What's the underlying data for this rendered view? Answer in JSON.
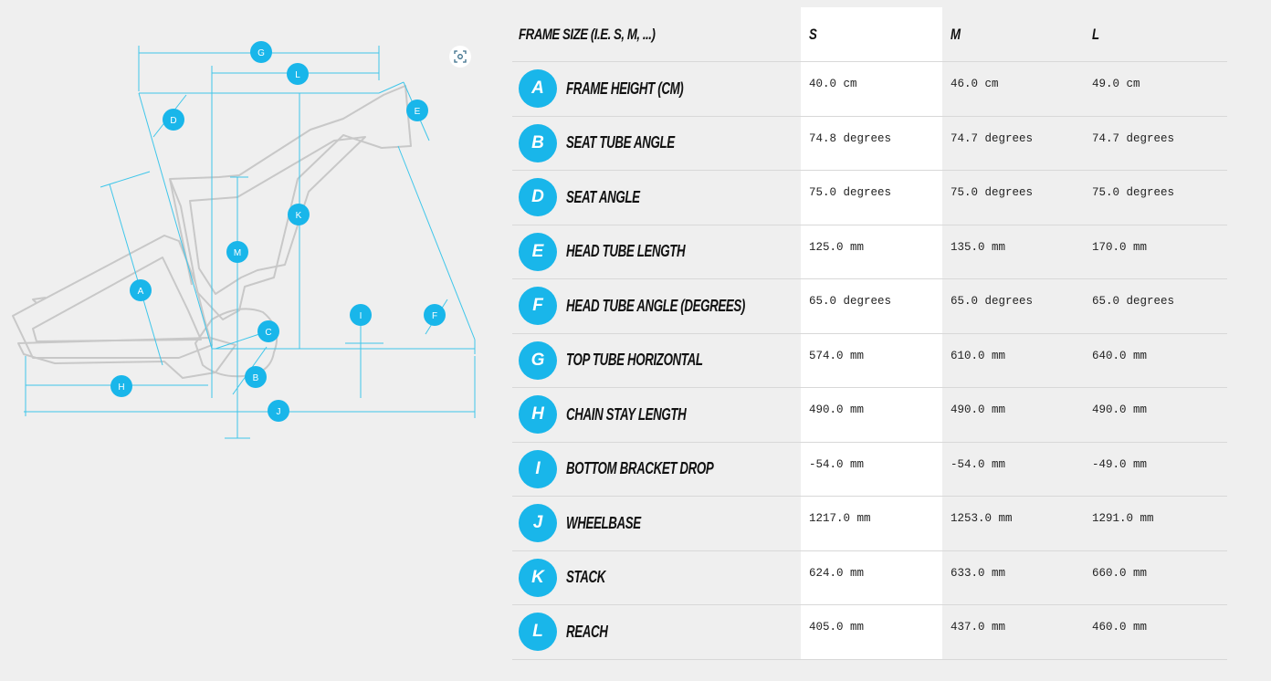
{
  "diagram": {
    "line_color": "#3fc6ea",
    "frame_color": "#c8c8c8",
    "badge_color": "#19b6ea",
    "labels": [
      "G",
      "L",
      "E",
      "D",
      "K",
      "M",
      "A",
      "I",
      "F",
      "C",
      "B",
      "H",
      "J"
    ],
    "expand_icon": "focus-frame-icon"
  },
  "table": {
    "header": {
      "label": "FRAME SIZE (I.E. S, M, ...)",
      "sizes": [
        "S",
        "M",
        "L"
      ]
    },
    "highlight_color": "#ffffff",
    "rows": [
      {
        "letter": "A",
        "name": "FRAME HEIGHT (CM)",
        "values": [
          "40.0 cm",
          "46.0 cm",
          "49.0 cm"
        ]
      },
      {
        "letter": "B",
        "name": "SEAT TUBE ANGLE",
        "values": [
          "74.8 degrees",
          "74.7 degrees",
          "74.7 degrees"
        ]
      },
      {
        "letter": "D",
        "name": "SEAT ANGLE",
        "values": [
          "75.0 degrees",
          "75.0 degrees",
          "75.0 degrees"
        ]
      },
      {
        "letter": "E",
        "name": "HEAD TUBE LENGTH",
        "values": [
          "125.0 mm",
          "135.0 mm",
          "170.0 mm"
        ]
      },
      {
        "letter": "F",
        "name": "HEAD TUBE ANGLE (DEGREES)",
        "values": [
          "65.0 degrees",
          "65.0 degrees",
          "65.0 degrees"
        ]
      },
      {
        "letter": "G",
        "name": "TOP TUBE HORIZONTAL",
        "values": [
          "574.0 mm",
          "610.0 mm",
          "640.0 mm"
        ]
      },
      {
        "letter": "H",
        "name": "CHAIN STAY LENGTH",
        "values": [
          "490.0 mm",
          "490.0 mm",
          "490.0 mm"
        ]
      },
      {
        "letter": "I",
        "name": "BOTTOM BRACKET DROP",
        "values": [
          "-54.0 mm",
          "-54.0 mm",
          "-49.0 mm"
        ]
      },
      {
        "letter": "J",
        "name": "WHEELBASE",
        "values": [
          "1217.0 mm",
          "1253.0 mm",
          "1291.0 mm"
        ]
      },
      {
        "letter": "K",
        "name": "STACK",
        "values": [
          "624.0 mm",
          "633.0 mm",
          "660.0 mm"
        ]
      },
      {
        "letter": "L",
        "name": "REACH",
        "values": [
          "405.0 mm",
          "437.0 mm",
          "460.0 mm"
        ]
      }
    ]
  }
}
